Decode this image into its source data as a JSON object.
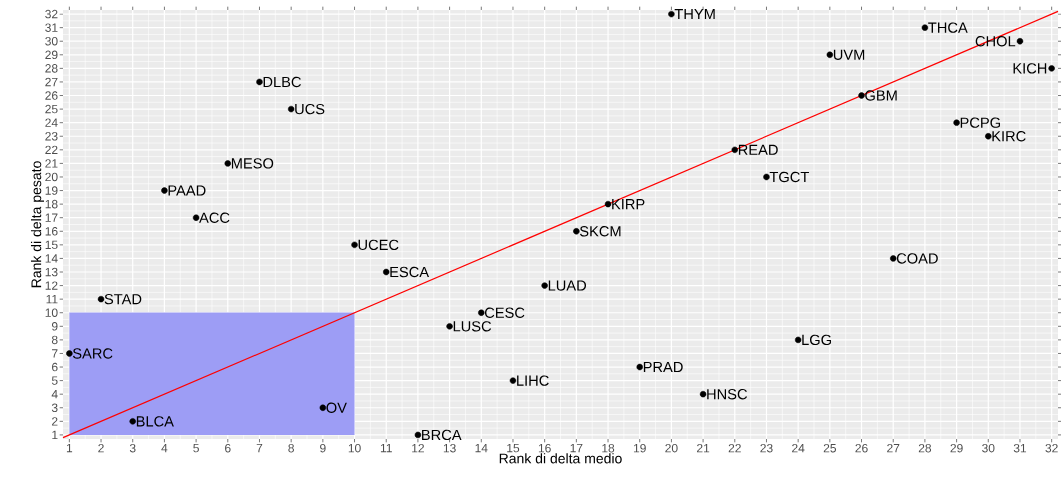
{
  "chart_data": {
    "type": "scatter",
    "xlabel": "Rank di delta medio",
    "ylabel": "Rank di delta pesato",
    "xlim": [
      0.8,
      32.2
    ],
    "ylim": [
      0.7,
      32.3
    ],
    "xticks": [
      1,
      2,
      3,
      4,
      5,
      6,
      7,
      8,
      9,
      10,
      11,
      12,
      13,
      14,
      15,
      16,
      17,
      18,
      19,
      20,
      21,
      22,
      23,
      24,
      25,
      26,
      27,
      28,
      29,
      30,
      31,
      32
    ],
    "yticks": [
      1,
      2,
      3,
      4,
      5,
      6,
      7,
      8,
      9,
      10,
      11,
      12,
      13,
      14,
      15,
      16,
      17,
      18,
      19,
      20,
      21,
      22,
      23,
      24,
      25,
      26,
      27,
      28,
      29,
      30,
      31,
      32
    ],
    "grid": true,
    "series": [
      {
        "type": "line",
        "color": "#9d9df5",
        "x": [
          1,
          10
        ],
        "values": [
          10,
          10
        ],
        "lower": [
          1,
          1
        ],
        "upper": [
          10,
          10
        ],
        "marker": "none"
      },
      {
        "color": "#000000",
        "marker": "circle",
        "x": [
          20,
          28,
          31,
          25,
          32,
          7,
          26,
          8,
          29,
          30,
          22,
          6,
          23,
          4,
          18,
          5,
          17,
          10,
          27,
          11,
          16,
          2,
          14,
          13,
          24,
          1,
          19,
          15,
          21,
          9,
          3,
          12
        ],
        "values": [
          32,
          31,
          30,
          29,
          28,
          27,
          26,
          25,
          24,
          23,
          22,
          21,
          20,
          19,
          18,
          17,
          16,
          15,
          14,
          13,
          12,
          11,
          10,
          9,
          8,
          7,
          6,
          5,
          4,
          3,
          2,
          1
        ]
      },
      {
        "type": "line",
        "color": "#ff0000",
        "line_style": "solid",
        "marker": "none",
        "x": [
          0.8,
          32.2
        ],
        "values": [
          0.8,
          32.2
        ]
      }
    ],
    "annotations": [
      {
        "text": "THYM",
        "x": 20,
        "y": 32
      },
      {
        "text": "THCA",
        "x": 28,
        "y": 31
      },
      {
        "text": "CHOL",
        "x": 31,
        "y": 30
      },
      {
        "text": "UVM",
        "x": 25,
        "y": 29
      },
      {
        "text": "KICH",
        "x": 32,
        "y": 28
      },
      {
        "text": "DLBC",
        "x": 7,
        "y": 27
      },
      {
        "text": "GBM",
        "x": 26,
        "y": 26
      },
      {
        "text": "UCS",
        "x": 8,
        "y": 25
      },
      {
        "text": "PCPG",
        "x": 29,
        "y": 24
      },
      {
        "text": "KIRC",
        "x": 30,
        "y": 23
      },
      {
        "text": "READ",
        "x": 22,
        "y": 22
      },
      {
        "text": "MESO",
        "x": 6,
        "y": 21
      },
      {
        "text": "TGCT",
        "x": 23,
        "y": 20
      },
      {
        "text": "PAAD",
        "x": 4,
        "y": 19
      },
      {
        "text": "KIRP",
        "x": 18,
        "y": 18
      },
      {
        "text": "ACC",
        "x": 5,
        "y": 17
      },
      {
        "text": "SKCM",
        "x": 17,
        "y": 16
      },
      {
        "text": "UCEC",
        "x": 10,
        "y": 15
      },
      {
        "text": "COAD",
        "x": 27,
        "y": 14
      },
      {
        "text": "ESCA",
        "x": 11,
        "y": 13
      },
      {
        "text": "LUAD",
        "x": 16,
        "y": 12
      },
      {
        "text": "STAD",
        "x": 2,
        "y": 11
      },
      {
        "text": "CESC",
        "x": 14,
        "y": 10
      },
      {
        "text": "LUSC",
        "x": 13,
        "y": 9
      },
      {
        "text": "LGG",
        "x": 24,
        "y": 8
      },
      {
        "text": "SARC",
        "x": 1,
        "y": 7
      },
      {
        "text": "PRAD",
        "x": 19,
        "y": 6
      },
      {
        "text": "LIHC",
        "x": 15,
        "y": 5
      },
      {
        "text": "HNSC",
        "x": 21,
        "y": 4
      },
      {
        "text": "OV",
        "x": 9,
        "y": 3
      },
      {
        "text": "BLCA",
        "x": 3,
        "y": 2
      },
      {
        "text": "BRCA",
        "x": 12,
        "y": 1
      }
    ]
  }
}
